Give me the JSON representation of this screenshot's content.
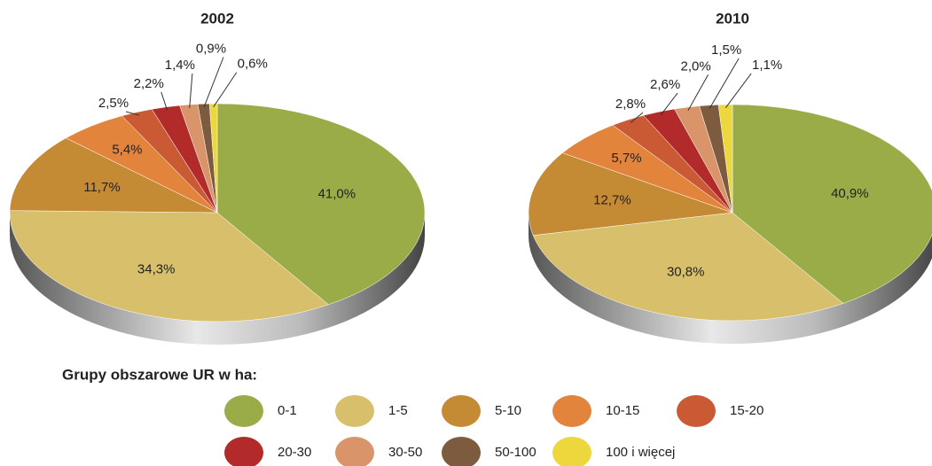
{
  "chart_data": [
    {
      "type": "pie",
      "title": "2002",
      "categories": [
        "0-1",
        "1-5",
        "5-10",
        "10-15",
        "15-20",
        "20-30",
        "30-50",
        "50-100",
        "100 i więcej"
      ],
      "values": [
        41.0,
        34.3,
        11.7,
        5.4,
        2.5,
        2.2,
        1.4,
        0.9,
        0.6
      ],
      "value_labels": [
        "41,0%",
        "34,3%",
        "11,7%",
        "5,4%",
        "2,5%",
        "2,2%",
        "1,4%",
        "0,9%",
        "0,6%"
      ],
      "colors": [
        "#9aac47",
        "#d8bf6c",
        "#c58a34",
        "#e3843d",
        "#c95a34",
        "#b22a2a",
        "#d9946a",
        "#7d5b3e",
        "#ecd73c"
      ]
    },
    {
      "type": "pie",
      "title": "2010",
      "categories": [
        "0-1",
        "1-5",
        "5-10",
        "10-15",
        "15-20",
        "20-30",
        "30-50",
        "50-100",
        "100 i więcej"
      ],
      "values": [
        40.9,
        30.8,
        12.7,
        5.7,
        2.8,
        2.6,
        2.0,
        1.5,
        1.1
      ],
      "value_labels": [
        "40,9%",
        "30,8%",
        "12,7%",
        "5,7%",
        "2,8%",
        "2,6%",
        "2,0%",
        "1,5%",
        "1,1%"
      ],
      "colors": [
        "#9aac47",
        "#d8bf6c",
        "#c58a34",
        "#e3843d",
        "#c95a34",
        "#b22a2a",
        "#d9946a",
        "#7d5b3e",
        "#ecd73c"
      ]
    }
  ],
  "legend": {
    "title": "Grupy obszarowe UR w ha:"
  }
}
